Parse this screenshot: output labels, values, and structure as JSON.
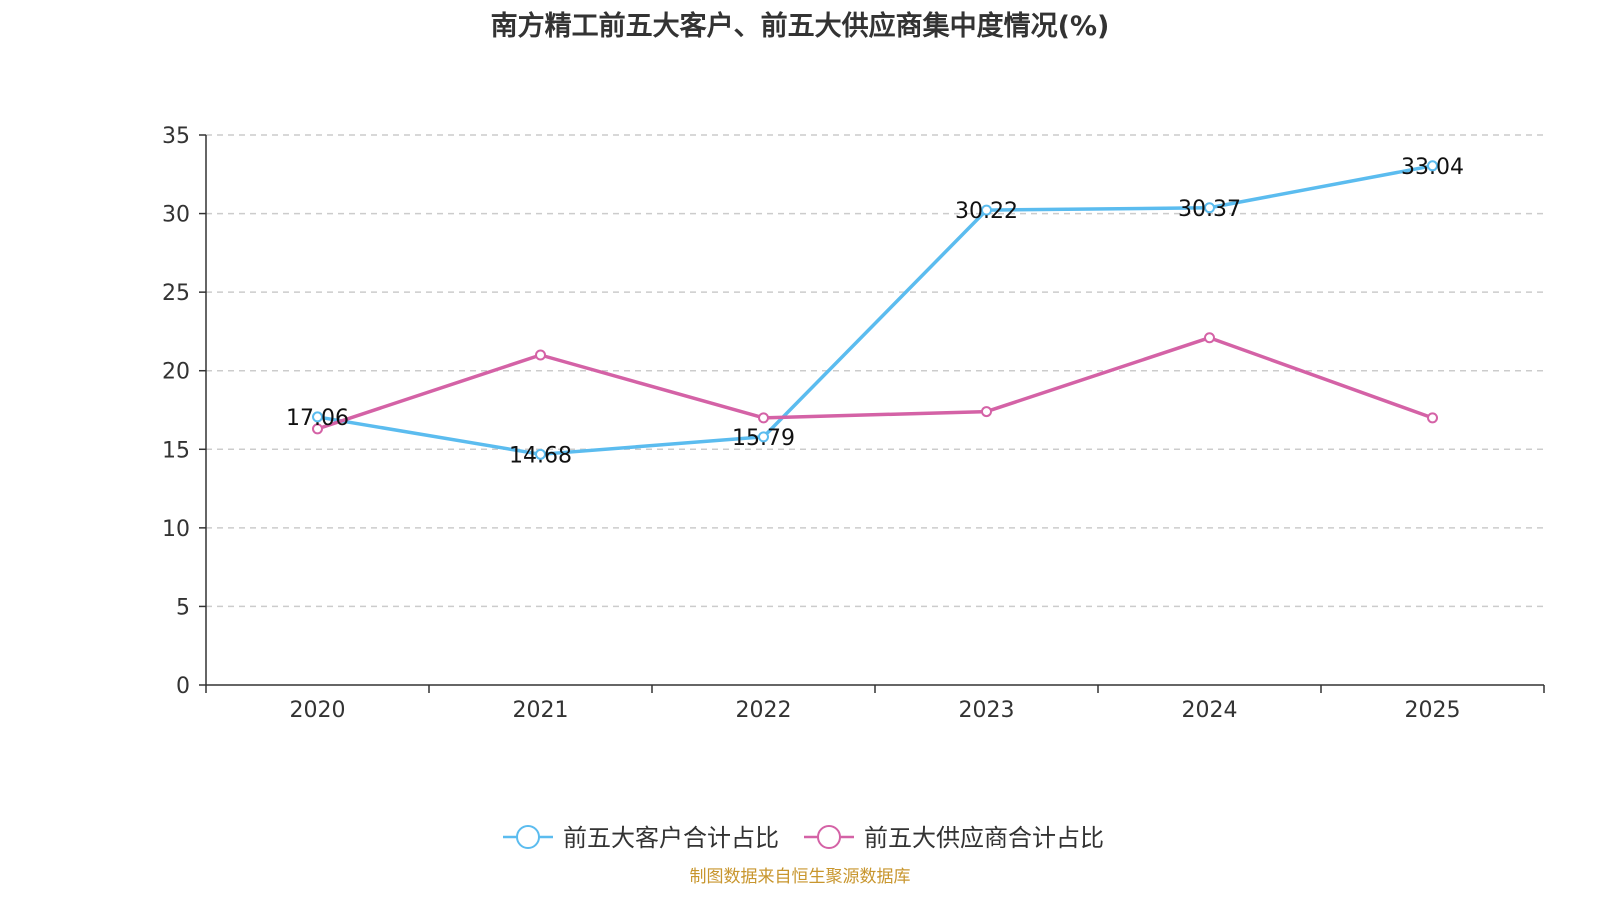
{
  "chart_data": {
    "type": "line",
    "title": "南方精工前五大客户、前五大供应商集中度情况(%)",
    "categories": [
      "2020",
      "2021",
      "2022",
      "2023",
      "2024",
      "2025"
    ],
    "ylim": [
      0,
      35
    ],
    "yticks": [
      0,
      5,
      10,
      15,
      20,
      25,
      30,
      35
    ],
    "grid": true,
    "legend_position": "bottom",
    "series": [
      {
        "name": "前五大客户合计占比",
        "color": "#5bbcef",
        "values": [
          17.06,
          14.68,
          15.79,
          30.22,
          30.37,
          33.04
        ],
        "labels": [
          "17.06",
          "14.68",
          "15.79",
          "30.22",
          "30.37",
          "33.04"
        ],
        "show_labels": true
      },
      {
        "name": "前五大供应商合计占比",
        "color": "#d462a6",
        "values": [
          16.3,
          21.0,
          17.0,
          17.4,
          22.1,
          17.0
        ],
        "show_labels": false
      }
    ]
  },
  "footer": {
    "source": "制图数据来自恒生聚源数据库"
  }
}
